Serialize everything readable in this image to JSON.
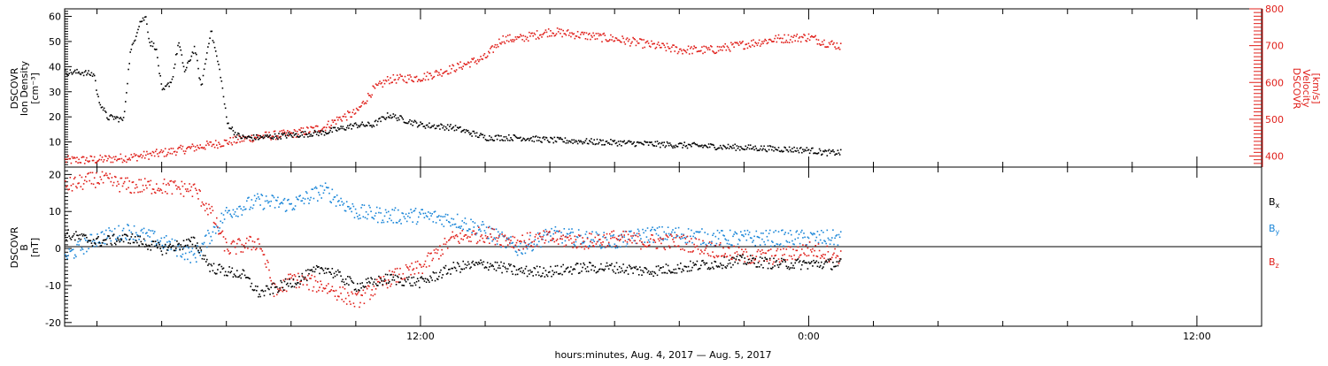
{
  "colors": {
    "black": "#000000",
    "red": "#e0201b",
    "blue": "#1a86d8"
  },
  "footer": {
    "xlabel": "hours:minutes, Aug.  4, 2017 — Aug.  5, 2017"
  },
  "chart_data": [
    {
      "type": "scatter",
      "panel": "density-velocity",
      "ylabel_left": [
        "DSCOVR",
        "Ion Density",
        "[cm⁻³]"
      ],
      "ylabel_right": [
        "DSCOVR",
        "Velocity",
        "[km/s]"
      ],
      "x_ticks": [
        "12:00",
        "0:00",
        "12:00"
      ],
      "x_tick_hours": [
        12,
        24,
        36
      ],
      "xlim_hours": [
        1,
        38
      ],
      "ylim_left": [
        0,
        63
      ],
      "yticks_left": [
        10,
        20,
        30,
        40,
        50,
        60
      ],
      "ylim_right": [
        370,
        800
      ],
      "yticks_right": [
        400,
        500,
        600,
        700,
        800
      ],
      "series": [
        {
          "name": "Ion Density",
          "color": "#000000",
          "axis": "left",
          "x_hours": [
            1.0,
            1.5,
            1.9,
            2.0,
            2.3,
            2.5,
            2.8,
            3.0,
            3.3,
            3.5,
            3.6,
            3.8,
            4.0,
            4.3,
            4.5,
            4.7,
            5.0,
            5.2,
            5.5,
            5.8,
            6.0,
            6.3,
            6.5,
            7,
            8,
            9,
            10,
            10.5,
            11,
            12,
            13,
            14,
            15,
            16,
            17,
            18,
            19,
            20,
            21,
            22,
            23,
            24,
            24.5,
            25.0
          ],
          "values": [
            38,
            38,
            37,
            28,
            20,
            20,
            19,
            45,
            58,
            60,
            50,
            48,
            30,
            35,
            50,
            38,
            48,
            32,
            55,
            37,
            18,
            13,
            12,
            12,
            13,
            14,
            17,
            17,
            21,
            17,
            16,
            12,
            12,
            11,
            10.5,
            10,
            9.5,
            9,
            8.5,
            8,
            7.5,
            7,
            6,
            6
          ]
        },
        {
          "name": "Velocity",
          "color": "#e0201b",
          "axis": "right",
          "x_hours": [
            1.0,
            2.0,
            3.0,
            4.0,
            5.0,
            6.0,
            7.0,
            8.0,
            9.0,
            9.5,
            10.0,
            10.5,
            11.0,
            12.0,
            13.0,
            14.0,
            14.5,
            15.0,
            16.0,
            17.0,
            18.0,
            19.0,
            20.0,
            21.0,
            22.0,
            23.0,
            24.0,
            24.5,
            25.0
          ],
          "values": [
            390,
            392,
            398,
            410,
            425,
            440,
            455,
            462,
            480,
            505,
            520,
            580,
            610,
            615,
            640,
            670,
            720,
            720,
            740,
            730,
            720,
            705,
            690,
            690,
            705,
            720,
            725,
            710,
            700
          ]
        }
      ]
    },
    {
      "type": "scatter",
      "panel": "magnetic-field",
      "ylabel_left": [
        "DSCOVR",
        "B",
        "[nT]"
      ],
      "x_ticks": [
        "12:00",
        "0:00",
        "12:00"
      ],
      "x_tick_hours": [
        12,
        24,
        36
      ],
      "xlim_hours": [
        1,
        38
      ],
      "ylim": [
        -21,
        22
      ],
      "yticks": [
        -20,
        -10,
        0,
        10,
        20
      ],
      "zero_line": true,
      "series": [
        {
          "name": "Bx",
          "color": "#000000",
          "x_hours": [
            1.0,
            2.0,
            3.0,
            4.0,
            5.0,
            5.5,
            6.0,
            6.5,
            7.0,
            8.0,
            9.0,
            10.0,
            11.0,
            12.0,
            13.0,
            14.0,
            15.0,
            16.0,
            17.0,
            18.0,
            19.0,
            20.0,
            21.0,
            22.0,
            23.0,
            24.0,
            25.0
          ],
          "values": [
            4,
            2,
            3,
            0,
            2,
            -5,
            -6,
            -7,
            -12,
            -9,
            -5,
            -10,
            -8,
            -9,
            -5,
            -4,
            -6,
            -6,
            -5,
            -5,
            -6,
            -5,
            -4,
            -3,
            -4,
            -4,
            -4
          ]
        },
        {
          "name": "By",
          "color": "#1a86d8",
          "x_hours": [
            1.0,
            2.0,
            3.0,
            4.0,
            5.0,
            6.0,
            7.0,
            8.0,
            9.0,
            10.0,
            11.0,
            12.0,
            13.0,
            14.0,
            15.0,
            16.0,
            17.0,
            18.0,
            19.0,
            20.0,
            21.0,
            22.0,
            23.0,
            24.0,
            25.0
          ],
          "values": [
            -2,
            3,
            5,
            2,
            -2,
            10,
            13,
            12,
            16,
            10,
            9,
            9,
            8,
            5,
            0,
            4,
            3,
            2,
            4,
            4,
            3,
            3,
            3,
            3,
            3
          ]
        },
        {
          "name": "Bz",
          "color": "#e0201b",
          "x_hours": [
            1.0,
            2.0,
            3.0,
            4.0,
            5.0,
            5.5,
            6.0,
            7.0,
            7.5,
            8.0,
            9.0,
            10.0,
            11.0,
            12.0,
            13.0,
            14.0,
            15.0,
            16.0,
            17.0,
            18.0,
            19.0,
            20.0,
            21.0,
            22.0,
            23.0,
            24.0,
            25.0
          ],
          "values": [
            17,
            19,
            17,
            17,
            16,
            10,
            0,
            2,
            -12,
            -8,
            -10,
            -14,
            -8,
            -5,
            3,
            4,
            2,
            3,
            2,
            3,
            2,
            2,
            0,
            -2,
            -2,
            0,
            -2
          ]
        }
      ],
      "legend": [
        {
          "main": "B",
          "sub": "x",
          "color": "#000000"
        },
        {
          "main": "B",
          "sub": "y",
          "color": "#1a86d8"
        },
        {
          "main": "B",
          "sub": "z",
          "color": "#e0201b"
        }
      ]
    }
  ]
}
